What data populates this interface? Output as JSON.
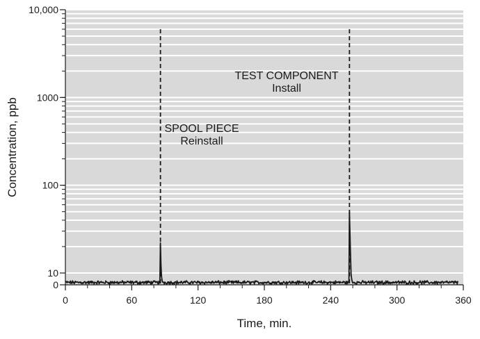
{
  "chart_data": {
    "type": "line",
    "title": "",
    "xlabel": "Time, min.",
    "ylabel": "Concentration, ppb",
    "xlim": [
      0,
      360
    ],
    "x_ticks": [
      0,
      60,
      120,
      180,
      240,
      300,
      360
    ],
    "x_tick_labels": [
      "0",
      "60",
      "120",
      "180",
      "240",
      "300",
      "360"
    ],
    "ylim": [
      0,
      10000
    ],
    "y_scale": "log",
    "y_ticks": [
      0,
      10,
      100,
      1000,
      10000
    ],
    "y_tick_labels": [
      "0",
      "10",
      "100",
      "1000",
      "10,000"
    ],
    "grid": true,
    "colors": {
      "plot_background": "#d9d9d9",
      "grid": "#ffffff",
      "line": "#1a1a1a"
    },
    "events": [
      {
        "x": 86,
        "label_line1": "SPOOL PIECE",
        "label_line2": "Reinstall",
        "peak": 22
      },
      {
        "x": 257,
        "label_line1": "TEST COMPONENT",
        "label_line2": "Install",
        "peak": 50
      }
    ],
    "baseline_level": 2
  }
}
